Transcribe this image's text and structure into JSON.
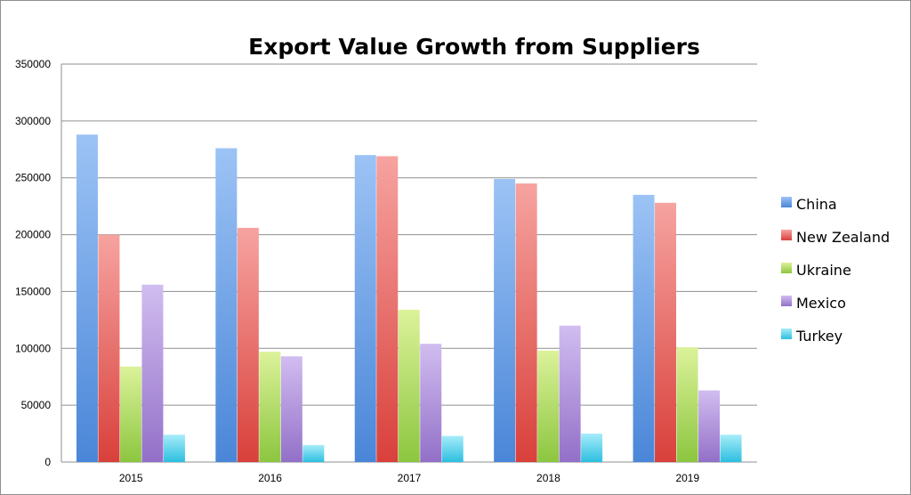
{
  "chart_data": {
    "type": "bar",
    "title": "Export Value Growth from Suppliers",
    "xlabel": "",
    "ylabel": "",
    "categories": [
      "2015",
      "2016",
      "2017",
      "2018",
      "2019"
    ],
    "ylim": [
      0,
      350000
    ],
    "yticks": [
      0,
      50000,
      100000,
      150000,
      200000,
      250000,
      300000,
      350000
    ],
    "grid": true,
    "legend_position": "right",
    "series": [
      {
        "name": "China",
        "color": "#4a86d8",
        "color_light": "#9cc3f5",
        "values": [
          288000,
          276000,
          270000,
          249000,
          235000
        ]
      },
      {
        "name": "New Zealand",
        "color": "#d9403b",
        "color_light": "#f6a3a0",
        "values": [
          200000,
          206000,
          269000,
          245000,
          228000
        ]
      },
      {
        "name": "Ukraine",
        "color": "#8cc63f",
        "color_light": "#dcf29a",
        "values": [
          84000,
          97000,
          134000,
          98000,
          101000
        ]
      },
      {
        "name": "Mexico",
        "color": "#9370c8",
        "color_light": "#d1bdf0",
        "values": [
          156000,
          93000,
          104000,
          120000,
          63000
        ]
      },
      {
        "name": "Turkey",
        "color": "#2dbfe0",
        "color_light": "#a6ecf9",
        "values": [
          24000,
          15000,
          23000,
          25000,
          24000
        ]
      }
    ]
  }
}
